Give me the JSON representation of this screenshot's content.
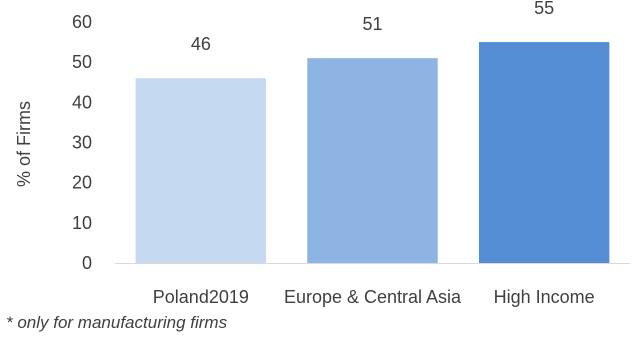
{
  "chart_data": {
    "type": "bar",
    "categories": [
      "Poland2019",
      "Europe & Central Asia",
      "High Income"
    ],
    "values": [
      46,
      51,
      55
    ],
    "data_labels": [
      "46",
      "51",
      "55"
    ],
    "ylabel": "% of Firms",
    "ylim": [
      0,
      60
    ],
    "yticks": [
      0,
      10,
      20,
      30,
      40,
      50,
      60
    ],
    "grid": false,
    "colors": [
      "#c5d9f1",
      "#8db4e2",
      "#558ed5"
    ]
  },
  "footnote": "* only for manufacturing firms"
}
